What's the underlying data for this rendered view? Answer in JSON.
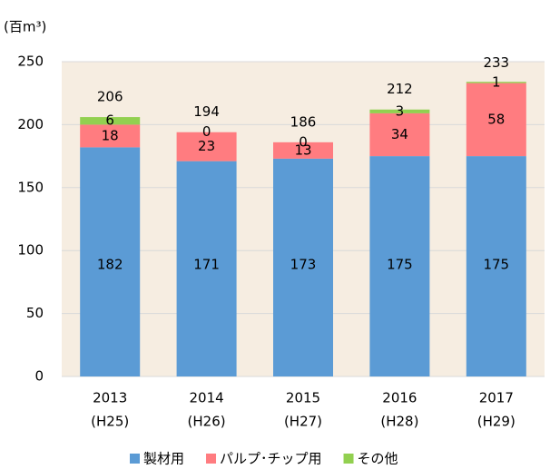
{
  "chart_data": {
    "type": "stacked_bar",
    "y_label": "(百m³)",
    "categories": [
      "2013",
      "2014",
      "2015",
      "2016",
      "2017"
    ],
    "category_sublabels": [
      "(H25)",
      "(H26)",
      "(H27)",
      "(H28)",
      "(H29)"
    ],
    "series": [
      {
        "name": "製材用",
        "color": "#5b9bd5",
        "values": [
          182,
          171,
          173,
          175,
          175
        ]
      },
      {
        "name": "パルプ･チップ用",
        "color": "#ff7c80",
        "values": [
          18,
          23,
          13,
          34,
          58
        ]
      },
      {
        "name": "その他",
        "color": "#92d050",
        "values": [
          6,
          0,
          0,
          3,
          1
        ]
      }
    ],
    "totals": [
      206,
      194,
      186,
      212,
      233
    ],
    "ylim": [
      0,
      250
    ],
    "yticks": [
      0,
      50,
      100,
      150,
      200,
      250
    ],
    "grid": true,
    "plot_background": "#f6ede1"
  }
}
